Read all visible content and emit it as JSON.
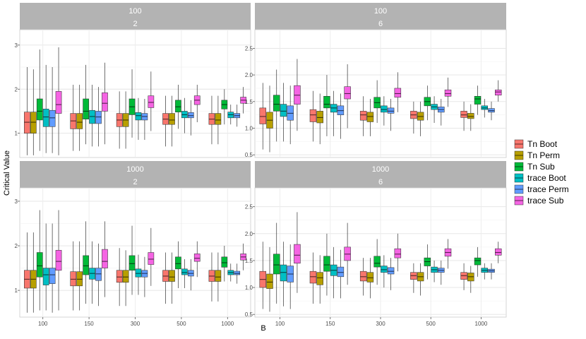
{
  "chart_data": {
    "type": "boxplot",
    "xlabel": "B",
    "ylabel": "Critical Value",
    "categories": [
      "100",
      "150",
      "300",
      "500",
      "1000"
    ],
    "legend": {
      "placement": "right",
      "entries": [
        {
          "name": "Tn Boot",
          "color": "#F8766D"
        },
        {
          "name": "Tn Perm",
          "color": "#B79F00"
        },
        {
          "name": "Tn Sub",
          "color": "#00BA38"
        },
        {
          "name": "trace Boot",
          "color": "#00BFC4"
        },
        {
          "name": "trace Perm",
          "color": "#619CFF"
        },
        {
          "name": "trace Sub",
          "color": "#F564E3"
        }
      ]
    },
    "panels": [
      {
        "strip": [
          "100",
          "2"
        ],
        "ylim": [
          0.45,
          3.35
        ],
        "yticks": [
          1,
          2,
          3
        ],
        "boxes": [
          [
            [
              0.5,
              1.0,
              1.25,
              1.48,
              2.5
            ],
            [
              0.5,
              1.0,
              1.25,
              1.48,
              2.45
            ],
            [
              0.6,
              1.3,
              1.5,
              1.78,
              2.9
            ],
            [
              0.55,
              1.15,
              1.37,
              1.55,
              2.55
            ],
            [
              0.55,
              1.15,
              1.35,
              1.52,
              2.5
            ],
            [
              0.5,
              1.45,
              1.65,
              1.95,
              2.95
            ]
          ],
          [
            [
              0.6,
              1.1,
              1.28,
              1.45,
              2.1
            ],
            [
              0.6,
              1.1,
              1.25,
              1.45,
              2.1
            ],
            [
              0.75,
              1.32,
              1.5,
              1.78,
              2.55
            ],
            [
              0.7,
              1.22,
              1.38,
              1.52,
              2.1
            ],
            [
              0.7,
              1.22,
              1.37,
              1.5,
              2.05
            ],
            [
              0.75,
              1.5,
              1.68,
              1.92,
              2.6
            ]
          ],
          [
            [
              0.65,
              1.15,
              1.3,
              1.45,
              1.95
            ],
            [
              0.65,
              1.15,
              1.3,
              1.45,
              1.95
            ],
            [
              0.9,
              1.42,
              1.6,
              1.78,
              2.45
            ],
            [
              0.85,
              1.3,
              1.4,
              1.47,
              1.8
            ],
            [
              0.85,
              1.3,
              1.38,
              1.45,
              1.78
            ],
            [
              1.05,
              1.58,
              1.7,
              1.85,
              2.4
            ]
          ],
          [
            [
              0.7,
              1.2,
              1.32,
              1.45,
              1.85
            ],
            [
              0.7,
              1.2,
              1.3,
              1.45,
              1.85
            ],
            [
              1.1,
              1.48,
              1.6,
              1.75,
              2.1
            ],
            [
              1.0,
              1.35,
              1.42,
              1.5,
              1.8
            ],
            [
              0.95,
              1.35,
              1.4,
              1.47,
              1.75
            ],
            [
              1.25,
              1.65,
              1.75,
              1.85,
              2.1
            ]
          ],
          [
            [
              0.75,
              1.2,
              1.32,
              1.45,
              1.85
            ],
            [
              0.75,
              1.2,
              1.3,
              1.45,
              1.85
            ],
            [
              1.2,
              1.55,
              1.65,
              1.75,
              2.0
            ],
            [
              1.2,
              1.35,
              1.42,
              1.48,
              1.65
            ],
            [
              1.15,
              1.35,
              1.4,
              1.45,
              1.65
            ],
            [
              1.45,
              1.68,
              1.75,
              1.82,
              2.05
            ]
          ]
        ]
      },
      {
        "strip": [
          "100",
          "6"
        ],
        "ylim": [
          0.45,
          2.85
        ],
        "yticks": [
          0.5,
          1.0,
          1.5,
          2.0,
          2.5
        ],
        "boxes": [
          [
            [
              0.6,
              1.08,
              1.22,
              1.38,
              1.85
            ],
            [
              0.55,
              1.0,
              1.15,
              1.3,
              1.8
            ],
            [
              0.75,
              1.32,
              1.45,
              1.62,
              2.1
            ],
            [
              0.75,
              1.22,
              1.32,
              1.45,
              1.85
            ],
            [
              0.7,
              1.15,
              1.28,
              1.42,
              1.8
            ],
            [
              0.95,
              1.45,
              1.62,
              1.8,
              2.3
            ]
          ],
          [
            [
              0.75,
              1.12,
              1.25,
              1.35,
              1.7
            ],
            [
              0.7,
              1.1,
              1.2,
              1.32,
              1.65
            ],
            [
              0.85,
              1.38,
              1.45,
              1.6,
              2.0
            ],
            [
              0.85,
              1.3,
              1.38,
              1.45,
              1.7
            ],
            [
              0.8,
              1.25,
              1.33,
              1.42,
              1.65
            ],
            [
              1.0,
              1.55,
              1.65,
              1.78,
              2.2
            ]
          ],
          [
            [
              0.85,
              1.15,
              1.25,
              1.32,
              1.6
            ],
            [
              0.85,
              1.12,
              1.22,
              1.3,
              1.55
            ],
            [
              1.1,
              1.38,
              1.48,
              1.58,
              1.9
            ],
            [
              1.05,
              1.3,
              1.35,
              1.42,
              1.6
            ],
            [
              0.95,
              1.28,
              1.32,
              1.38,
              1.55
            ],
            [
              1.3,
              1.58,
              1.65,
              1.75,
              2.05
            ]
          ],
          [
            [
              0.9,
              1.18,
              1.25,
              1.32,
              1.5
            ],
            [
              0.85,
              1.15,
              1.22,
              1.3,
              1.5
            ],
            [
              1.15,
              1.42,
              1.5,
              1.58,
              1.8
            ],
            [
              1.1,
              1.35,
              1.4,
              1.45,
              1.6
            ],
            [
              1.05,
              1.3,
              1.35,
              1.4,
              1.55
            ],
            [
              1.4,
              1.6,
              1.65,
              1.72,
              1.95
            ]
          ],
          [
            [
              0.95,
              1.2,
              1.25,
              1.32,
              1.5
            ],
            [
              0.95,
              1.18,
              1.22,
              1.28,
              1.45
            ],
            [
              1.25,
              1.45,
              1.55,
              1.6,
              1.8
            ],
            [
              1.2,
              1.35,
              1.38,
              1.42,
              1.55
            ],
            [
              1.15,
              1.3,
              1.33,
              1.37,
              1.5
            ],
            [
              1.5,
              1.62,
              1.68,
              1.72,
              1.9
            ]
          ]
        ]
      },
      {
        "strip": [
          "1000",
          "2"
        ],
        "ylim": [
          0.4,
          3.3
        ],
        "yticks": [
          1,
          2,
          3
        ],
        "boxes": [
          [
            [
              0.5,
              1.05,
              1.25,
              1.45,
              2.3
            ],
            [
              0.5,
              1.05,
              1.25,
              1.45,
              2.3
            ],
            [
              0.55,
              1.3,
              1.55,
              1.85,
              2.8
            ],
            [
              0.55,
              1.12,
              1.35,
              1.5,
              2.5
            ],
            [
              0.5,
              1.15,
              1.35,
              1.5,
              2.5
            ],
            [
              0.55,
              1.45,
              1.65,
              1.9,
              2.8
            ]
          ],
          [
            [
              0.55,
              1.1,
              1.25,
              1.42,
              2.1
            ],
            [
              0.55,
              1.1,
              1.25,
              1.42,
              2.1
            ],
            [
              0.7,
              1.35,
              1.55,
              1.78,
              2.55
            ],
            [
              0.7,
              1.25,
              1.38,
              1.5,
              2.1
            ],
            [
              0.65,
              1.22,
              1.37,
              1.5,
              2.05
            ],
            [
              0.85,
              1.5,
              1.65,
              1.92,
              2.55
            ]
          ],
          [
            [
              0.65,
              1.18,
              1.3,
              1.45,
              1.95
            ],
            [
              0.65,
              1.18,
              1.3,
              1.45,
              1.9
            ],
            [
              0.9,
              1.45,
              1.6,
              1.78,
              2.45
            ],
            [
              0.9,
              1.3,
              1.38,
              1.48,
              1.8
            ],
            [
              0.85,
              1.3,
              1.38,
              1.45,
              1.75
            ],
            [
              1.1,
              1.58,
              1.7,
              1.85,
              2.4
            ]
          ],
          [
            [
              0.7,
              1.2,
              1.32,
              1.45,
              1.85
            ],
            [
              0.7,
              1.2,
              1.3,
              1.45,
              1.85
            ],
            [
              1.05,
              1.48,
              1.6,
              1.75,
              2.1
            ],
            [
              1.05,
              1.35,
              1.4,
              1.48,
              1.7
            ],
            [
              1.0,
              1.32,
              1.38,
              1.45,
              1.7
            ],
            [
              1.3,
              1.65,
              1.72,
              1.82,
              2.1
            ]
          ],
          [
            [
              0.75,
              1.2,
              1.32,
              1.45,
              1.85
            ],
            [
              0.75,
              1.2,
              1.3,
              1.45,
              1.85
            ],
            [
              1.2,
              1.52,
              1.62,
              1.75,
              2.0
            ],
            [
              1.2,
              1.35,
              1.4,
              1.45,
              1.6
            ],
            [
              1.15,
              1.35,
              1.38,
              1.43,
              1.6
            ],
            [
              1.45,
              1.68,
              1.75,
              1.82,
              2.05
            ]
          ]
        ]
      },
      {
        "strip": [
          "1000",
          "6"
        ],
        "ylim": [
          0.45,
          2.85
        ],
        "yticks": [
          0.5,
          1.0,
          1.5,
          2.0,
          2.5
        ],
        "boxes": [
          [
            [
              0.6,
              1.0,
              1.15,
              1.3,
              1.85
            ],
            [
              0.55,
              0.98,
              1.1,
              1.25,
              1.75
            ],
            [
              0.7,
              1.25,
              1.42,
              1.62,
              2.2
            ],
            [
              0.65,
              1.12,
              1.28,
              1.42,
              1.85
            ],
            [
              0.6,
              1.1,
              1.25,
              1.4,
              1.8
            ],
            [
              0.9,
              1.45,
              1.6,
              1.8,
              2.4
            ]
          ],
          [
            [
              0.7,
              1.08,
              1.2,
              1.3,
              1.65
            ],
            [
              0.7,
              1.05,
              1.18,
              1.28,
              1.6
            ],
            [
              0.85,
              1.3,
              1.42,
              1.58,
              2.0
            ],
            [
              0.8,
              1.22,
              1.32,
              1.42,
              1.75
            ],
            [
              0.8,
              1.2,
              1.28,
              1.38,
              1.7
            ],
            [
              1.05,
              1.5,
              1.62,
              1.75,
              2.2
            ]
          ],
          [
            [
              0.85,
              1.12,
              1.2,
              1.3,
              1.55
            ],
            [
              0.8,
              1.1,
              1.18,
              1.28,
              1.55
            ],
            [
              1.05,
              1.38,
              1.45,
              1.58,
              1.9
            ],
            [
              1.0,
              1.28,
              1.33,
              1.4,
              1.6
            ],
            [
              0.95,
              1.25,
              1.3,
              1.37,
              1.55
            ],
            [
              1.3,
              1.55,
              1.62,
              1.72,
              2.0
            ]
          ],
          [
            [
              0.9,
              1.15,
              1.22,
              1.28,
              1.45
            ],
            [
              0.85,
              1.12,
              1.2,
              1.28,
              1.45
            ],
            [
              1.15,
              1.4,
              1.48,
              1.55,
              1.8
            ],
            [
              1.1,
              1.28,
              1.33,
              1.38,
              1.5
            ],
            [
              1.05,
              1.28,
              1.32,
              1.36,
              1.5
            ],
            [
              1.35,
              1.58,
              1.65,
              1.72,
              1.9
            ]
          ],
          [
            [
              0.95,
              1.15,
              1.22,
              1.28,
              1.45
            ],
            [
              0.9,
              1.12,
              1.2,
              1.27,
              1.4
            ],
            [
              1.2,
              1.42,
              1.5,
              1.55,
              1.75
            ],
            [
              1.15,
              1.28,
              1.32,
              1.36,
              1.45
            ],
            [
              1.15,
              1.28,
              1.31,
              1.34,
              1.45
            ],
            [
              1.45,
              1.6,
              1.65,
              1.72,
              1.85
            ]
          ]
        ]
      }
    ]
  }
}
